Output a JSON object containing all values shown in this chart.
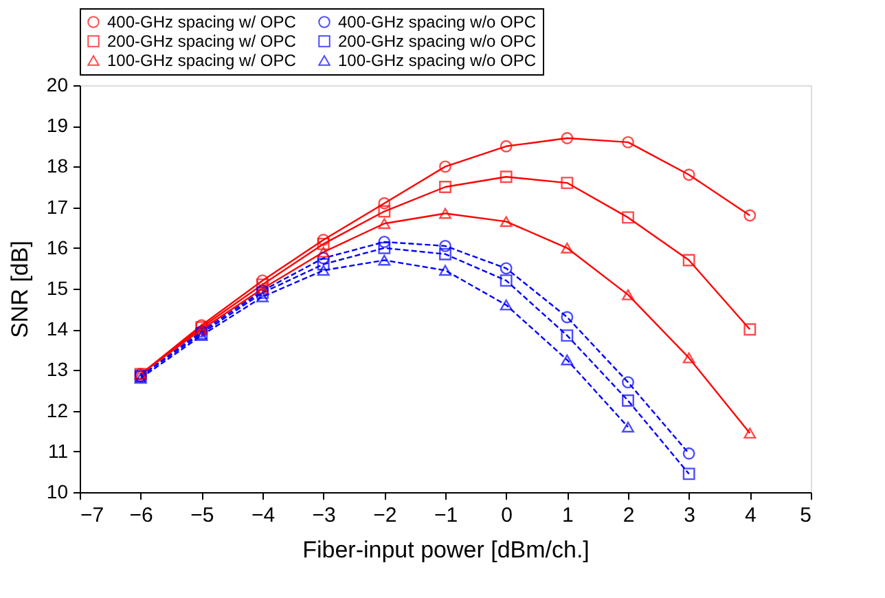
{
  "chart_data": {
    "type": "line",
    "xlabel": "Fiber-input power [dBm/ch.]",
    "ylabel": "SNR [dB]",
    "x": [
      -6,
      -5,
      -4,
      -3,
      -2,
      -1,
      0,
      1,
      2,
      3,
      4
    ],
    "xlim": [
      -7,
      5
    ],
    "xticks": [
      -7,
      -6,
      -5,
      -4,
      -3,
      -2,
      -1,
      0,
      1,
      2,
      3,
      4,
      5
    ],
    "ylim": [
      10,
      20
    ],
    "yticks": [
      10,
      11,
      12,
      13,
      14,
      15,
      16,
      17,
      18,
      19,
      20
    ],
    "grid": false,
    "legend": "top",
    "series": [
      {
        "name": "400-GHz spacing w/ OPC",
        "color": "#ff0000",
        "marker": "circle",
        "line_style": "solid",
        "values": [
          12.9,
          14.1,
          15.2,
          16.2,
          17.1,
          18.0,
          18.5,
          18.7,
          18.6,
          17.8,
          16.8
        ]
      },
      {
        "name": "400-GHz spacing w/o OPC",
        "color": "#0000ff",
        "marker": "circle",
        "line_style": "dashed",
        "values": [
          12.85,
          13.95,
          14.95,
          15.75,
          16.15,
          16.05,
          15.5,
          14.3,
          12.7,
          10.95,
          null
        ]
      },
      {
        "name": "200-GHz spacing w/ OPC",
        "color": "#ff0000",
        "marker": "square",
        "line_style": "solid",
        "values": [
          12.9,
          14.05,
          15.1,
          16.1,
          16.9,
          17.5,
          17.75,
          17.6,
          16.75,
          15.7,
          14.0
        ]
      },
      {
        "name": "200-GHz spacing w/o OPC",
        "color": "#0000ff",
        "marker": "square",
        "line_style": "dashed",
        "values": [
          12.85,
          13.9,
          14.9,
          15.6,
          16.0,
          15.85,
          15.2,
          13.85,
          12.25,
          10.45,
          null
        ]
      },
      {
        "name": "100-GHz spacing w/ OPC",
        "color": "#ff0000",
        "marker": "triangle",
        "line_style": "solid",
        "values": [
          12.9,
          14.0,
          15.0,
          15.9,
          16.6,
          16.85,
          16.65,
          16.0,
          14.85,
          13.3,
          11.45
        ]
      },
      {
        "name": "100-GHz spacing w/o OPC",
        "color": "#0000ff",
        "marker": "triangle",
        "line_style": "dashed",
        "values": [
          12.8,
          13.85,
          14.8,
          15.45,
          15.7,
          15.45,
          14.6,
          13.25,
          11.6,
          null,
          null
        ]
      }
    ]
  }
}
